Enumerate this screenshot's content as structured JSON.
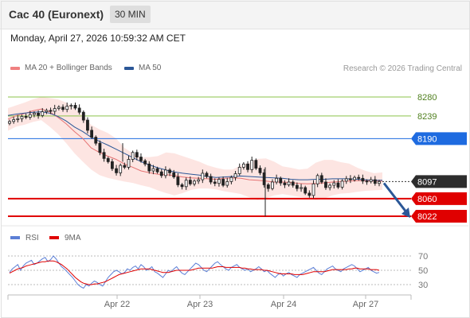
{
  "header": {
    "title": "Cac 40 (Euronext)",
    "timeframe": "30 MIN",
    "timestamp": "Monday, April 27, 2026 10:59:32 AM CET"
  },
  "legend": {
    "ma20_label": "MA 20 + Bollinger Bands",
    "ma20_color": "#f08080",
    "ma50_label": "MA 50",
    "ma50_color": "#2b5797",
    "credit": "Research © 2026 Trading Central"
  },
  "chart_data": [
    {
      "type": "candlestick",
      "title": "Cac 40 (Euronext)",
      "ylim": [
        8005,
        8305
      ],
      "x_ticks": [
        "Apr 22",
        "Apr 23",
        "Apr 24",
        "Apr 27"
      ],
      "grid": false,
      "current_price": 8097,
      "levels": [
        {
          "value": 8280,
          "label": "8280",
          "role": "resistance",
          "color": "#8bc34a"
        },
        {
          "value": 8239,
          "label": "8239",
          "role": "resistance",
          "color": "#8bc34a"
        },
        {
          "value": 8190,
          "label": "8190",
          "role": "pivot",
          "color": "#1e6be0"
        },
        {
          "value": 8097,
          "label": "8097",
          "role": "last",
          "color": "#333333"
        },
        {
          "value": 8060,
          "label": "8060",
          "role": "support",
          "color": "#e00000"
        },
        {
          "value": 8022,
          "label": "8022",
          "role": "support",
          "color": "#e00000"
        }
      ],
      "candles_close": [
        8227,
        8231,
        8233,
        8238,
        8236,
        8242,
        8245,
        8240,
        8248,
        8251,
        8249,
        8255,
        8258,
        8253,
        8260,
        8262,
        8256,
        8247,
        8230,
        8208,
        8193,
        8180,
        8160,
        8147,
        8140,
        8125,
        8116,
        8132,
        8128,
        8145,
        8160,
        8150,
        8142,
        8135,
        8120,
        8125,
        8118,
        8110,
        8122,
        8116,
        8107,
        8090,
        8086,
        8100,
        8092,
        8098,
        8101,
        8115,
        8108,
        8096,
        8093,
        8102,
        8089,
        8097,
        8106,
        8114,
        8128,
        8135,
        8123,
        8143,
        8126,
        8116,
        8090,
        8082,
        8096,
        8104,
        8094,
        8090,
        8096,
        8089,
        8082,
        8084,
        8072,
        8067,
        8092,
        8110,
        8096,
        8084,
        8089,
        8094,
        8085,
        8098,
        8103,
        8101,
        8106,
        8104,
        8098,
        8097,
        8101,
        8093,
        8097
      ],
      "bollinger_upper": [
        8256,
        8262,
        8268,
        8275,
        8280,
        8278,
        8275,
        8268,
        8255,
        8240,
        8220,
        8210,
        8202,
        8190,
        8170,
        8158,
        8150,
        8150,
        8152,
        8160,
        8158,
        8152,
        8146,
        8140,
        8132,
        8127,
        8123,
        8123,
        8132,
        8138,
        8146,
        8147,
        8140,
        8130,
        8127,
        8123,
        8125,
        8138,
        8144,
        8144,
        8139,
        8136,
        8127,
        8120,
        8115,
        8117
      ],
      "bollinger_lower": [
        8207,
        8216,
        8220,
        8226,
        8230,
        8216,
        8200,
        8180,
        8158,
        8140,
        8123,
        8111,
        8105,
        8101,
        8097,
        8094,
        8089,
        8085,
        8078,
        8072,
        8067,
        8072,
        8079,
        8082,
        8082,
        8080,
        8076,
        8073,
        8070,
        8063,
        8057,
        8061,
        8067,
        8070,
        8067,
        8064,
        8061,
        8057,
        8060,
        8067,
        8071,
        8072,
        8075,
        8077,
        8078,
        8079
      ],
      "ma20": [
        8232,
        8240,
        8244,
        8250,
        8254,
        8248,
        8236,
        8222,
        8205,
        8190,
        8170,
        8160,
        8152,
        8145,
        8135,
        8128,
        8120,
        8116,
        8113,
        8112,
        8110,
        8107,
        8105,
        8104,
        8103,
        8102,
        8104,
        8105,
        8104,
        8101,
        8100,
        8098,
        8096,
        8096,
        8095,
        8093,
        8092,
        8093,
        8094,
        8096,
        8097,
        8098,
        8099,
        8099,
        8098,
        8098
      ],
      "ma50": [
        8240,
        8243,
        8245,
        8247,
        8248,
        8245,
        8238,
        8228,
        8215,
        8205,
        8193,
        8184,
        8176,
        8167,
        8158,
        8149,
        8140,
        8133,
        8127,
        8122,
        8118,
        8115,
        8113,
        8111,
        8108,
        8106,
        8107,
        8108,
        8109,
        8108,
        8107,
        8106,
        8105,
        8104,
        8102,
        8101,
        8101,
        8102,
        8102,
        8103,
        8103,
        8103,
        8102,
        8101,
        8100,
        8100
      ],
      "projection": {
        "from": 8097,
        "to": 8022
      }
    },
    {
      "type": "line",
      "series": [
        {
          "name": "RSI",
          "color": "#5c7fd6",
          "values": [
            47,
            52,
            55,
            58,
            50,
            56,
            60,
            62,
            64,
            58,
            60,
            63,
            66,
            68,
            62,
            65,
            70,
            66,
            60,
            55,
            52,
            48,
            44,
            40,
            35,
            30,
            27,
            25,
            30,
            28,
            32,
            35,
            33,
            30,
            28,
            34,
            40,
            44,
            48,
            50,
            48,
            45,
            47,
            52,
            50,
            54,
            56,
            52,
            58,
            55,
            50,
            52,
            55,
            48,
            46,
            43,
            40,
            45,
            50,
            48,
            52,
            55,
            50,
            46,
            44,
            48,
            52,
            56,
            60,
            58,
            54,
            50,
            48,
            52,
            56,
            60,
            62,
            58,
            55,
            52,
            50,
            54,
            56,
            58,
            54,
            52,
            50,
            52,
            48,
            50,
            52,
            55,
            52,
            48,
            50,
            46,
            43,
            40,
            44,
            46,
            42,
            45,
            47,
            44,
            42,
            40,
            44,
            46,
            48,
            50,
            52,
            54,
            50,
            46,
            44,
            48,
            52,
            54,
            56,
            52,
            50,
            48,
            52,
            54,
            56,
            58,
            56,
            52,
            48,
            50,
            52,
            54,
            50,
            48,
            46,
            47
          ]
        },
        {
          "name": "9MA",
          "color": "#e00000",
          "values": [
            46,
            48,
            50,
            52,
            53,
            54,
            56,
            57,
            58,
            59,
            60,
            61,
            62,
            62,
            63,
            63,
            63,
            62,
            60,
            58,
            55,
            52,
            48,
            44,
            40,
            37,
            34,
            32,
            31,
            30,
            30,
            31,
            31,
            32,
            33,
            34,
            36,
            38,
            40,
            42,
            44,
            45,
            46,
            47,
            48,
            49,
            50,
            51,
            52,
            52,
            52,
            52,
            51,
            50,
            49,
            48,
            47,
            47,
            47,
            48,
            49,
            50,
            50,
            50,
            50,
            50,
            50,
            51,
            52,
            53,
            53,
            53,
            53,
            53,
            53,
            54,
            55,
            55,
            55,
            54,
            54,
            54,
            54,
            54,
            54,
            53,
            53,
            52,
            52,
            51,
            51,
            51,
            51,
            50,
            50,
            49,
            48,
            47,
            46,
            45,
            45,
            45,
            45,
            45,
            44,
            44,
            44,
            44,
            45,
            46,
            47,
            48,
            48,
            48,
            48,
            48,
            49,
            50,
            51,
            51,
            51,
            51,
            51,
            51,
            52,
            52,
            53,
            53,
            52,
            52,
            52,
            52,
            51,
            51,
            51,
            50
          ]
        }
      ],
      "ylim": [
        20,
        75
      ],
      "y_ticks": [
        70,
        50,
        30
      ],
      "legend": "top-left"
    }
  ]
}
